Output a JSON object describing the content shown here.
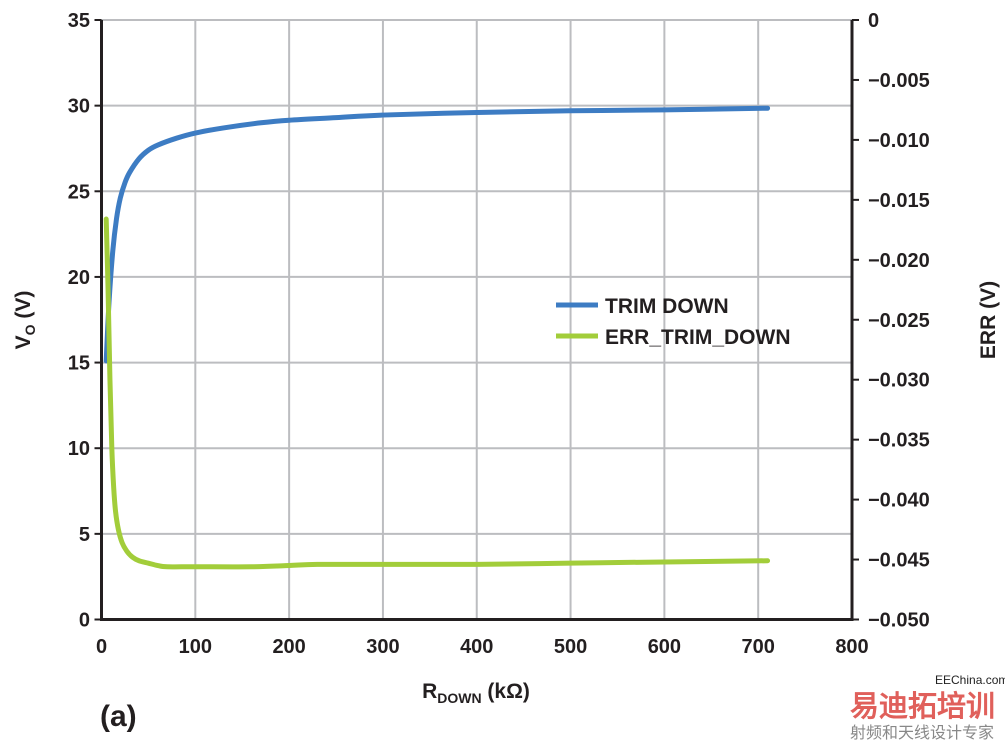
{
  "chart_data": {
    "type": "line",
    "panel_label": "(a)",
    "xlabel": {
      "main": "R",
      "sub": "DOWN",
      "unit": " (kΩ)"
    },
    "ylabel_left": {
      "main": "V",
      "sub": "O",
      "unit": " (V)"
    },
    "ylabel_right": "ERR (V)",
    "xlim": [
      0,
      800
    ],
    "ylim_left": [
      0,
      35
    ],
    "ylim_right": [
      -0.05,
      0
    ],
    "x_ticks": [
      "0",
      "100",
      "200",
      "300",
      "400",
      "500",
      "600",
      "700",
      "800"
    ],
    "y_left_ticks": [
      "0",
      "5",
      "10",
      "15",
      "20",
      "25",
      "30",
      "35"
    ],
    "y_right_ticks": [
      "0",
      "−0.005",
      "−0.010",
      "−0.015",
      "−0.020",
      "−0.025",
      "−0.030",
      "−0.035",
      "−0.040",
      "−0.045",
      "−0.050"
    ],
    "grid": true,
    "legend_position": "center-right",
    "series": [
      {
        "name": "TRIM DOWN",
        "axis": "left",
        "color": "#3d7cc3",
        "x": [
          5,
          8,
          12,
          16,
          20,
          25,
          30,
          40,
          50,
          60,
          80,
          100,
          130,
          170,
          200,
          250,
          300,
          400,
          500,
          600,
          710
        ],
        "y": [
          15.1,
          18.5,
          21.5,
          23.4,
          24.6,
          25.5,
          26.1,
          26.9,
          27.4,
          27.7,
          28.1,
          28.4,
          28.7,
          29.0,
          29.15,
          29.3,
          29.45,
          29.6,
          29.7,
          29.75,
          29.85
        ]
      },
      {
        "name": "ERR_TRIM_DOWN",
        "axis": "right",
        "color": "#a2cd3a",
        "x": [
          5,
          7,
          9,
          11,
          13,
          15,
          18,
          22,
          27,
          33,
          40,
          50,
          60,
          70,
          100,
          160,
          200,
          230,
          300,
          400,
          500,
          600,
          710
        ],
        "y": [
          -0.0166,
          -0.0225,
          -0.03,
          -0.0357,
          -0.039,
          -0.041,
          -0.0425,
          -0.0436,
          -0.0443,
          -0.0448,
          -0.0451,
          -0.0453,
          -0.0455,
          -0.0456,
          -0.0456,
          -0.0456,
          -0.0455,
          -0.0454,
          -0.0454,
          -0.0454,
          -0.0453,
          -0.0452,
          -0.0451
        ]
      }
    ]
  },
  "watermark": {
    "brand": "易迪拓培训",
    "tagline": "射频和天线设计专家",
    "site": "EEChina.com"
  }
}
